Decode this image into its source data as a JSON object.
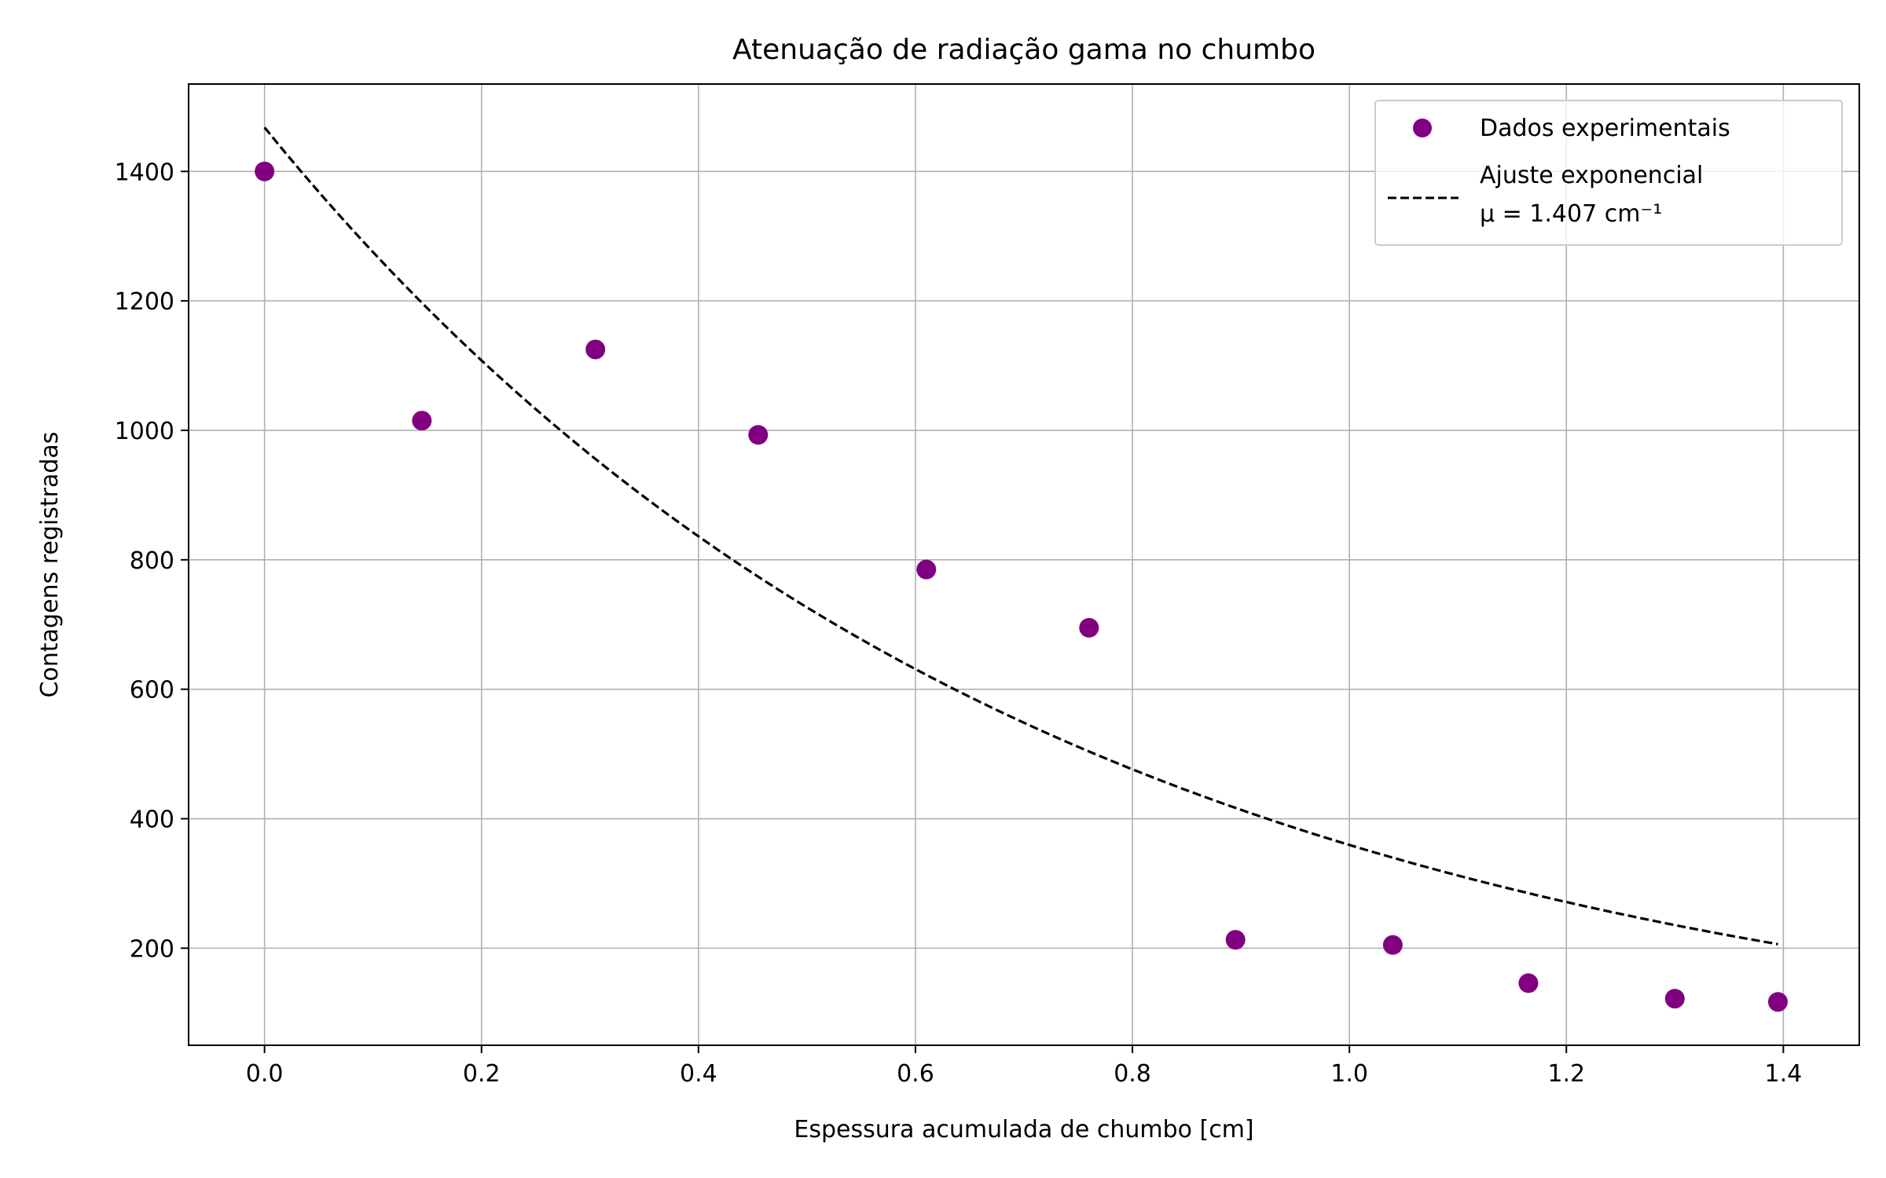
{
  "chart_data": {
    "type": "scatter",
    "title": "Atenuação de radiação gama no chumbo",
    "xlabel": "Espessura acumulada de chumbo [cm]",
    "ylabel": "Contagens registradas",
    "xlim": [
      -0.07,
      1.47
    ],
    "ylim": [
      50,
      1535
    ],
    "x_ticks": [
      "0.0",
      "0.2",
      "0.4",
      "0.6",
      "0.8",
      "1.0",
      "1.2",
      "1.4"
    ],
    "y_ticks": [
      "200",
      "400",
      "600",
      "800",
      "1000",
      "1200",
      "1400"
    ],
    "grid": true,
    "legend_position": "top-right",
    "series": [
      {
        "name": "Dados experimentais",
        "kind": "scatter",
        "color": "#800080",
        "x": [
          0.0,
          0.145,
          0.305,
          0.455,
          0.61,
          0.76,
          0.895,
          1.04,
          1.165,
          1.3,
          1.395
        ],
        "y": [
          1400,
          1015,
          1125,
          993,
          785,
          695,
          213,
          205,
          146,
          122,
          117
        ]
      },
      {
        "name": "Ajuste exponencial",
        "name_line2": "μ = 1.407 cm⁻¹",
        "kind": "line",
        "style": "dashed",
        "color": "#000000",
        "mu": 1.407,
        "amplitude": 1468,
        "x_range": [
          0.0,
          1.395
        ]
      }
    ]
  }
}
